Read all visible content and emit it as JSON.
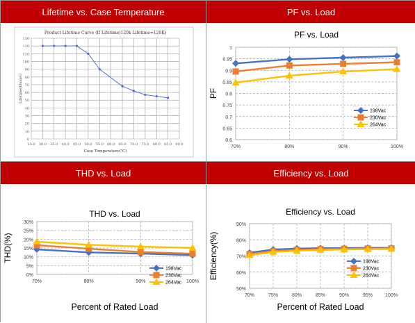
{
  "panels": [
    {
      "header": "Lifetime vs. Case Temperature"
    },
    {
      "header": "PF vs. Load"
    },
    {
      "header": "THD vs. Load"
    },
    {
      "header": "Efficiency vs. Load"
    }
  ],
  "colors": {
    "header_bg": "#c00000",
    "s198": "#4472c4",
    "s230": "#ed7d31",
    "s264": "#ffc000",
    "lifetime_line": "#4f6fd0"
  },
  "chart_data": [
    {
      "type": "line",
      "title": "Product Lifetime Curve (If Lifetime)120k Lifetime=120K)",
      "xlabel": "Case Temperature(℃)",
      "ylabel": "Lifetime(Khours)",
      "xlim": [
        25,
        90
      ],
      "ylim": [
        0,
        130
      ],
      "xticks": [
        "25.0",
        "30.0",
        "35.0",
        "40.0",
        "45.0",
        "50.0",
        "55.0",
        "60.0",
        "65.0",
        "70.0",
        "75.0",
        "80.0",
        "85.0",
        "90.0"
      ],
      "yticks": [
        "0",
        "10",
        "20",
        "30",
        "40",
        "50",
        "60",
        "70",
        "80",
        "90",
        "100",
        "110",
        "120",
        "130"
      ],
      "grid": true,
      "series": [
        {
          "x": [
            30,
            35,
            40,
            45,
            50,
            55,
            65,
            70,
            75,
            80,
            85
          ],
          "y": [
            120,
            120,
            120,
            120,
            110,
            90,
            68,
            62,
            57,
            55,
            53
          ]
        }
      ]
    },
    {
      "type": "line",
      "title": "PF vs. Load",
      "xlabel": "",
      "ylabel": "PF",
      "categories": [
        "70%",
        "80%",
        "90%",
        "100%"
      ],
      "ylim": [
        0.6,
        1.0
      ],
      "yticks": [
        "0.6",
        "0.65",
        "0.7",
        "0.75",
        "0.8",
        "0.85",
        "0.9",
        "0.95",
        "1"
      ],
      "legend": "bottom-right",
      "series": [
        {
          "name": "198Vac",
          "values": [
            0.93,
            0.948,
            0.955,
            0.962
          ]
        },
        {
          "name": "230Vac",
          "values": [
            0.895,
            0.921,
            0.928,
            0.935
          ]
        },
        {
          "name": "264Vac",
          "values": [
            0.847,
            0.877,
            0.895,
            0.905
          ]
        }
      ]
    },
    {
      "type": "line",
      "title": "THD vs. Load",
      "xlabel": "Percent of Rated Load",
      "ylabel": "THD(%)",
      "categories": [
        "70%",
        "80%",
        "90%",
        "100%"
      ],
      "ylim": [
        0,
        30
      ],
      "yticks": [
        "0%",
        "5%",
        "10%",
        "15%",
        "20%",
        "25%",
        "30%"
      ],
      "legend": "bottom-right",
      "series": [
        {
          "name": "198Vac",
          "values": [
            14.2,
            12.5,
            11.8,
            10.9
          ]
        },
        {
          "name": "230Vac",
          "values": [
            16.6,
            14.6,
            12.7,
            11.8
          ]
        },
        {
          "name": "264Vac",
          "values": [
            18.6,
            16.8,
            15.8,
            15.0
          ]
        }
      ]
    },
    {
      "type": "line",
      "title": "Efficiency vs. Load",
      "xlabel": "Percent of  Rated Load",
      "ylabel": "Efficiency(%)",
      "categories": [
        "70%",
        "75%",
        "80%",
        "85%",
        "90%",
        "95%",
        "100%"
      ],
      "ylim": [
        50,
        90
      ],
      "yticks": [
        "50%",
        "60%",
        "70%",
        "80%",
        "90%"
      ],
      "legend": "bottom-right",
      "series": [
        {
          "name": "198Vac",
          "values": [
            72.0,
            74.0,
            74.6,
            74.8,
            74.9,
            75.0,
            75.0
          ]
        },
        {
          "name": "230Vac",
          "values": [
            71.2,
            73.0,
            73.8,
            74.2,
            74.4,
            74.6,
            74.7
          ]
        },
        {
          "name": "264Vac",
          "values": [
            70.5,
            72.5,
            73.2,
            73.7,
            74.0,
            74.2,
            74.3
          ]
        }
      ]
    }
  ]
}
